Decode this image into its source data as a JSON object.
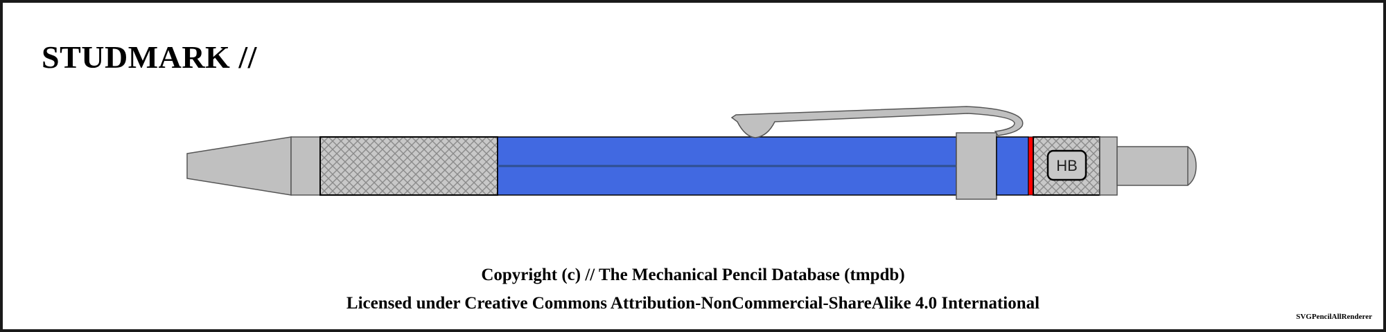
{
  "title": "STUDMARK //",
  "pencil": {
    "grade_label": "HB",
    "colors": {
      "body": "#4169E1",
      "body_line": "#2F4F8F",
      "metal": "#C0C0C0",
      "grip": "#C8C8C8",
      "grip_pattern": "#8A8A8A",
      "ring": "#FF0000",
      "outline": "#000000"
    }
  },
  "footer": {
    "copyright": "Copyright (c) // The Mechanical Pencil Database (tmpdb)",
    "license": "Licensed under Creative Commons Attribution-NonCommercial-ShareAlike 4.0 International"
  },
  "renderer": "SVGPencilAllRenderer"
}
